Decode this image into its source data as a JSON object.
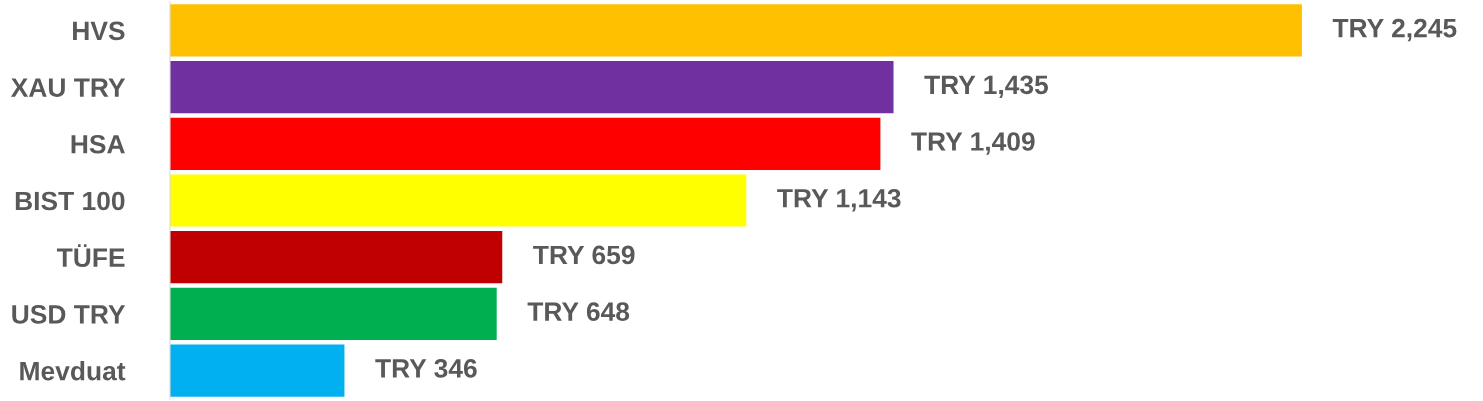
{
  "chart_data": {
    "type": "bar",
    "orientation": "horizontal",
    "categories": [
      "HVS",
      "XAU TRY",
      "HSA",
      "BIST 100",
      "TÜFE",
      "USD TRY",
      "Mevduat"
    ],
    "values": [
      2245,
      1435,
      1409,
      1143,
      659,
      648,
      346
    ],
    "colors": [
      "#ffc000",
      "#7030a0",
      "#ff0000",
      "#ffff00",
      "#c00000",
      "#00b050",
      "#00b0f0"
    ],
    "value_labels": [
      "TRY 2,245",
      "TRY 1,435",
      "TRY 1,409",
      "TRY 1,143",
      "TRY 659",
      "TRY 648",
      "TRY 346"
    ],
    "grid": false,
    "legend": false
  }
}
